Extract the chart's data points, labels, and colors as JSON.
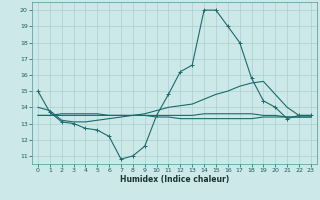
{
  "xlabel": "Humidex (Indice chaleur)",
  "bg_color": "#cde8e8",
  "grid_color": "#aacfcf",
  "line_color": "#1a6b6b",
  "xlim": [
    -0.5,
    23.5
  ],
  "ylim": [
    10.5,
    20.5
  ],
  "yticks": [
    11,
    12,
    13,
    14,
    15,
    16,
    17,
    18,
    19,
    20
  ],
  "xticks": [
    0,
    1,
    2,
    3,
    4,
    5,
    6,
    7,
    8,
    9,
    10,
    11,
    12,
    13,
    14,
    15,
    16,
    17,
    18,
    19,
    20,
    21,
    22,
    23
  ],
  "series": [
    [
      15.0,
      13.7,
      13.1,
      13.0,
      12.7,
      12.6,
      12.2,
      10.8,
      11.0,
      11.6,
      13.5,
      14.8,
      16.2,
      16.6,
      20.0,
      20.0,
      19.0,
      18.0,
      15.8,
      14.4,
      14.0,
      13.3,
      13.5,
      13.5
    ],
    [
      14.0,
      13.8,
      13.2,
      13.1,
      13.1,
      13.2,
      13.3,
      13.4,
      13.5,
      13.6,
      13.8,
      14.0,
      14.1,
      14.2,
      14.5,
      14.8,
      15.0,
      15.3,
      15.5,
      15.6,
      14.8,
      14.0,
      13.5,
      13.5
    ],
    [
      13.5,
      13.5,
      13.5,
      13.5,
      13.5,
      13.5,
      13.5,
      13.5,
      13.5,
      13.5,
      13.5,
      13.5,
      13.5,
      13.5,
      13.6,
      13.6,
      13.6,
      13.6,
      13.6,
      13.5,
      13.5,
      13.4,
      13.4,
      13.4
    ],
    [
      13.5,
      13.5,
      13.6,
      13.6,
      13.6,
      13.6,
      13.5,
      13.5,
      13.5,
      13.5,
      13.4,
      13.4,
      13.3,
      13.3,
      13.3,
      13.3,
      13.3,
      13.3,
      13.3,
      13.4,
      13.4,
      13.4,
      13.4,
      13.4
    ]
  ]
}
